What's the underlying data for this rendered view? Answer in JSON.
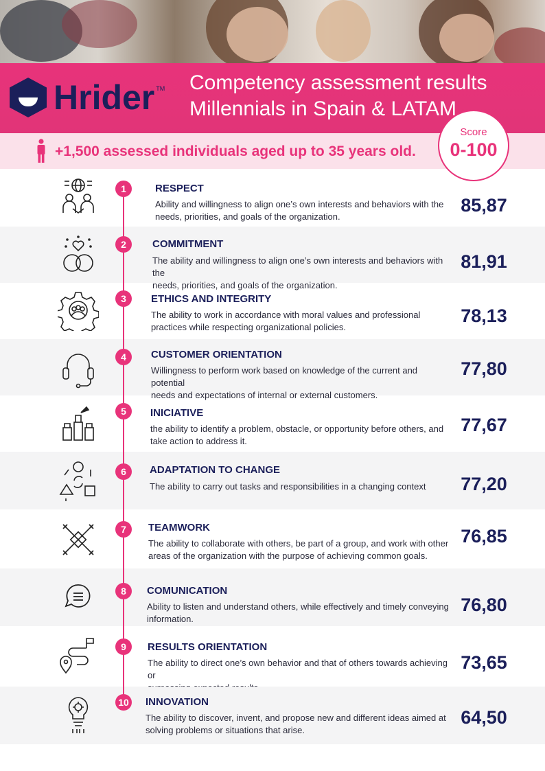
{
  "header": {
    "brand": "Hrider",
    "trademark": "TM",
    "title_line1": "Competency assessment results",
    "title_line2": "Millennials in Spain & LATAM"
  },
  "subheader": {
    "icon": "person-icon",
    "text": "+1,500 assessed individuals aged up to 35 years old."
  },
  "score_badge": {
    "label": "Score",
    "range": "0-100"
  },
  "colors": {
    "accent": "#e8337a",
    "navy": "#1b1f5a",
    "row_alt": "#f4f4f5"
  },
  "competencies": [
    {
      "number": "1",
      "icon": "globe-people-icon",
      "name": "RESPECT",
      "line1": "Ability and willingness to align one’s own interests and behaviors with the",
      "line2": "needs, priorities, and goals of the organization.",
      "score": "85,87"
    },
    {
      "number": "2",
      "icon": "heart-rings-icon",
      "name": "COMMITMENT",
      "line1": "The ability and willingness to align one’s own interests and behaviors with the",
      "line2": "needs, priorities, and goals of the organization.",
      "score": "81,91"
    },
    {
      "number": "3",
      "icon": "gear-people-icon",
      "name": "ETHICS AND INTEGRITY",
      "line1": "The ability to work in accordance with moral values and professional",
      "line2": "practices while respecting organizational policies.",
      "score": "78,13"
    },
    {
      "number": "4",
      "icon": "headset-icon",
      "name": "CUSTOMER ORIENTATION",
      "line1": "Willingness to perform work based on knowledge of the current and potential",
      "line2": "needs and expectations of internal or external customers.",
      "score": "77,80"
    },
    {
      "number": "5",
      "icon": "raised-hands-icon",
      "name": "INICIATIVE",
      "line1": "the ability to identify a problem, obstacle, or opportunity before others, and",
      "line2": "take action to address it.",
      "score": "77,67"
    },
    {
      "number": "6",
      "icon": "adaptation-shapes-icon",
      "name": "ADAPTATION TO CHANGE",
      "line1": "The ability to carry out tasks and responsibilities in a changing context",
      "line2": "",
      "score": "77,20"
    },
    {
      "number": "7",
      "icon": "joined-hands-icon",
      "name": "TEAMWORK",
      "line1": "The ability to collaborate with others, be part of a group, and work with other",
      "line2": "areas of the organization with the purpose of achieving common goals.",
      "score": "76,85"
    },
    {
      "number": "8",
      "icon": "chat-bubble-icon",
      "name": "COMUNICATION",
      "line1": "Ability to listen and understand others, while effectively and timely conveying",
      "line2": "information.",
      "score": "76,80"
    },
    {
      "number": "9",
      "icon": "route-flag-icon",
      "name": "RESULTS ORIENTATION",
      "line1": "The ability to direct one’s own behavior and that of others towards achieving or",
      "line2": "surpassing expected results.",
      "score": "73,65"
    },
    {
      "number": "10",
      "icon": "idea-bulb-icon",
      "name": "INNOVATION",
      "line1": "The ability to discover, invent, and propose new and different ideas aimed at",
      "line2": "solving problems or situations that arise.",
      "score": "64,50"
    }
  ]
}
